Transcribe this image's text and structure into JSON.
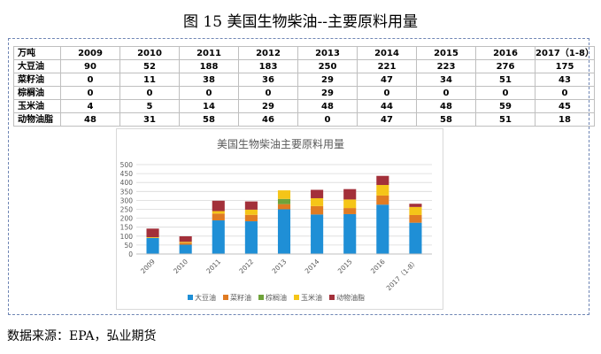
{
  "figure_title": "图 15  美国生物柴油--主要原料用量",
  "source_text": "数据来源：EPA，弘业期货",
  "table": {
    "corner": "万吨",
    "years": [
      "2009",
      "2010",
      "2011",
      "2012",
      "2013",
      "2014",
      "2015",
      "2016",
      "2017（1-8）"
    ],
    "rows": [
      {
        "label": "大豆油",
        "values": [
          "90",
          "52",
          "188",
          "183",
          "250",
          "221",
          "223",
          "276",
          "175"
        ]
      },
      {
        "label": "菜籽油",
        "values": [
          "0",
          "11",
          "38",
          "36",
          "29",
          "47",
          "34",
          "51",
          "43"
        ]
      },
      {
        "label": "棕榈油",
        "values": [
          "0",
          "0",
          "0",
          "0",
          "29",
          "0",
          "0",
          "0",
          "0"
        ]
      },
      {
        "label": "玉米油",
        "values": [
          "4",
          "5",
          "14",
          "29",
          "48",
          "44",
          "48",
          "59",
          "45"
        ]
      },
      {
        "label": "动物油脂",
        "values": [
          "48",
          "31",
          "58",
          "46",
          "0",
          "47",
          "58",
          "51",
          "18"
        ]
      }
    ]
  },
  "chart_data": {
    "type": "bar",
    "stacked": true,
    "title": "美国生物柴油主要原料用量",
    "categories": [
      "2009",
      "2010",
      "2011",
      "2012",
      "2013",
      "2014",
      "2015",
      "2016",
      "2017（1-8）"
    ],
    "ylim": [
      0,
      500
    ],
    "yticks": [
      0,
      50,
      100,
      150,
      200,
      250,
      300,
      350,
      400,
      450,
      500
    ],
    "grid": true,
    "legend_position": "bottom",
    "series": [
      {
        "name": "大豆油",
        "color": "#1f8fd6",
        "values": [
          90,
          52,
          188,
          183,
          250,
          221,
          223,
          276,
          175
        ]
      },
      {
        "name": "菜籽油",
        "color": "#e07b22",
        "values": [
          0,
          11,
          38,
          36,
          29,
          47,
          34,
          51,
          43
        ]
      },
      {
        "name": "棕榈油",
        "color": "#6fa33a",
        "values": [
          0,
          0,
          0,
          0,
          29,
          0,
          0,
          0,
          0
        ]
      },
      {
        "name": "玉米油",
        "color": "#f5c518",
        "values": [
          4,
          5,
          14,
          29,
          48,
          44,
          48,
          59,
          45
        ]
      },
      {
        "name": "动物油脂",
        "color": "#a3303a",
        "values": [
          48,
          31,
          58,
          46,
          0,
          47,
          58,
          51,
          18
        ]
      }
    ]
  }
}
